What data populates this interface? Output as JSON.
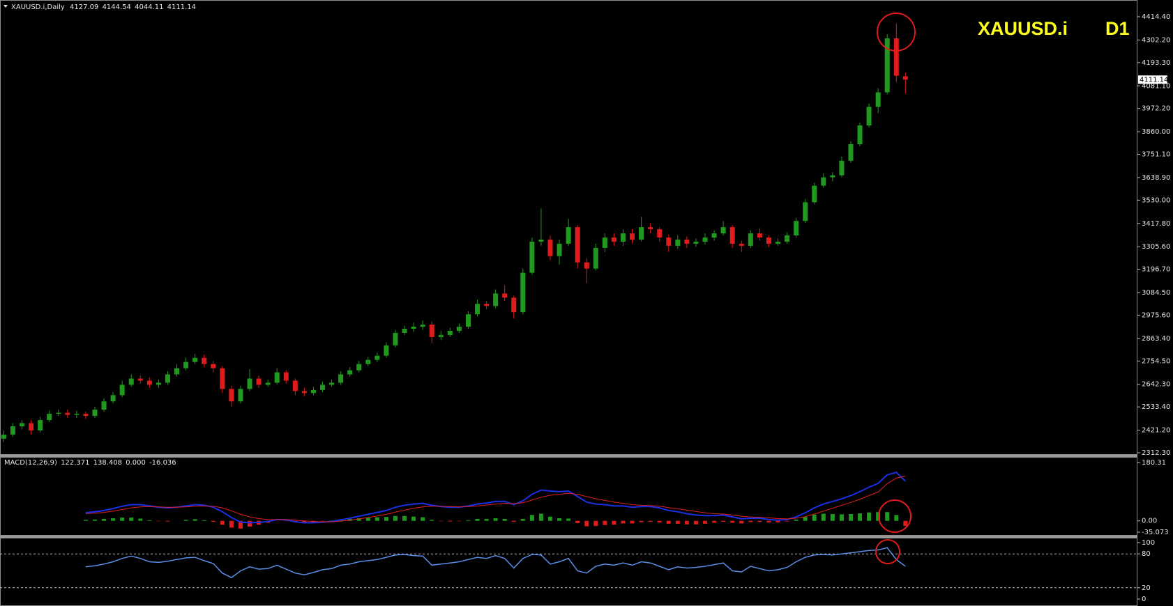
{
  "chart_data": [
    {
      "type": "candlestick",
      "title": "XAUUSD.i,Daily",
      "symbol": "XAUUSD.i",
      "timeframe": "D1",
      "up_color": "#1f9a1f",
      "down_color": "#e01b1b",
      "open": [
        2380,
        2400,
        2440,
        2455,
        2420,
        2470,
        2500,
        2505,
        2495,
        2500,
        2490,
        2520,
        2560,
        2590,
        2640,
        2670,
        2660,
        2640,
        2650,
        2690,
        2720,
        2750,
        2770,
        2740,
        2720,
        2620,
        2560,
        2620,
        2670,
        2640,
        2650,
        2700,
        2660,
        2610,
        2600,
        2615,
        2640,
        2650,
        2690,
        2710,
        2740,
        2760,
        2780,
        2830,
        2890,
        2910,
        2920,
        2930,
        2870,
        2880,
        2900,
        2920,
        2980,
        3030,
        3020,
        3080,
        3060,
        2990,
        3180,
        3330,
        3340,
        3260,
        3320,
        3400,
        3230,
        3200,
        3300,
        3350,
        3330,
        3370,
        3340,
        3400,
        3390,
        3350,
        3310,
        3340,
        3320,
        3330,
        3350,
        3370,
        3400,
        3320,
        3310,
        3370,
        3350,
        3320,
        3330,
        3360,
        3430,
        3520,
        3600,
        3640,
        3650,
        3720,
        3800,
        3890,
        3980,
        4050,
        4310,
        4127.09
      ],
      "high": [
        2420,
        2455,
        2470,
        2470,
        2485,
        2515,
        2520,
        2520,
        2515,
        2510,
        2535,
        2575,
        2605,
        2660,
        2690,
        2685,
        2675,
        2665,
        2705,
        2740,
        2770,
        2790,
        2785,
        2755,
        2730,
        2635,
        2635,
        2715,
        2685,
        2665,
        2720,
        2710,
        2670,
        2625,
        2630,
        2655,
        2665,
        2705,
        2725,
        2755,
        2775,
        2795,
        2845,
        2905,
        2925,
        2940,
        2950,
        2945,
        2900,
        2915,
        2935,
        2995,
        3050,
        3045,
        3100,
        3120,
        3070,
        3200,
        3350,
        3490,
        3360,
        3340,
        3440,
        3410,
        3250,
        3320,
        3370,
        3370,
        3390,
        3390,
        3450,
        3420,
        3400,
        3365,
        3360,
        3355,
        3345,
        3370,
        3385,
        3430,
        3410,
        3335,
        3385,
        3395,
        3360,
        3345,
        3375,
        3445,
        3535,
        3615,
        3660,
        3665,
        3740,
        3815,
        3905,
        3995,
        4070,
        4330,
        4381,
        4144.54
      ],
      "low": [
        2365,
        2390,
        2425,
        2400,
        2410,
        2460,
        2490,
        2480,
        2480,
        2475,
        2480,
        2510,
        2550,
        2580,
        2630,
        2645,
        2625,
        2625,
        2640,
        2680,
        2710,
        2740,
        2725,
        2700,
        2600,
        2535,
        2550,
        2610,
        2625,
        2630,
        2640,
        2645,
        2590,
        2585,
        2590,
        2605,
        2630,
        2640,
        2680,
        2700,
        2730,
        2750,
        2770,
        2820,
        2880,
        2895,
        2905,
        2840,
        2855,
        2870,
        2890,
        2910,
        2970,
        3005,
        3010,
        3045,
        2960,
        2980,
        3170,
        3310,
        3240,
        3220,
        3310,
        3200,
        3130,
        3190,
        3280,
        3310,
        3310,
        3320,
        3330,
        3370,
        3330,
        3280,
        3295,
        3300,
        3305,
        3315,
        3335,
        3360,
        3300,
        3280,
        3300,
        3335,
        3305,
        3310,
        3320,
        3350,
        3420,
        3510,
        3590,
        3620,
        3640,
        3710,
        3790,
        3880,
        3950,
        4040,
        4100,
        4044.11
      ],
      "close": [
        2400,
        2440,
        2455,
        2420,
        2470,
        2500,
        2505,
        2495,
        2500,
        2490,
        2520,
        2560,
        2590,
        2640,
        2670,
        2660,
        2640,
        2650,
        2690,
        2720,
        2750,
        2770,
        2740,
        2720,
        2620,
        2560,
        2620,
        2670,
        2640,
        2650,
        2700,
        2660,
        2610,
        2600,
        2615,
        2640,
        2650,
        2690,
        2710,
        2740,
        2760,
        2780,
        2830,
        2890,
        2910,
        2920,
        2930,
        2870,
        2880,
        2900,
        2920,
        2980,
        3030,
        3020,
        3080,
        3060,
        2990,
        3180,
        3330,
        3340,
        3260,
        3320,
        3400,
        3230,
        3200,
        3300,
        3350,
        3330,
        3370,
        3340,
        3400,
        3390,
        3350,
        3310,
        3340,
        3320,
        3330,
        3350,
        3370,
        3400,
        3320,
        3310,
        3370,
        3350,
        3320,
        3330,
        3360,
        3430,
        3520,
        3600,
        3640,
        3650,
        3720,
        3800,
        3890,
        3980,
        4050,
        4310,
        4130,
        4111.14
      ],
      "ylim": [
        2305.6,
        4488.3
      ],
      "yticks": [
        {
          "value": 2312.3,
          "label": "2312.30"
        },
        {
          "value": 2421.2,
          "label": "2421.20"
        },
        {
          "value": 2533.4,
          "label": "2533.40"
        },
        {
          "value": 2642.3,
          "label": "2642.30"
        },
        {
          "value": 2754.5,
          "label": "2754.50"
        },
        {
          "value": 2863.4,
          "label": "2863.40"
        },
        {
          "value": 2975.6,
          "label": "2975.60"
        },
        {
          "value": 3084.5,
          "label": "3084.50"
        },
        {
          "value": 3196.7,
          "label": "3196.70"
        },
        {
          "value": 3305.6,
          "label": "3305.60"
        },
        {
          "value": 3417.8,
          "label": "3417.80"
        },
        {
          "value": 3530,
          "label": "3530.00"
        },
        {
          "value": 3638.9,
          "label": "3638.90"
        },
        {
          "value": 3751.1,
          "label": "3751.10"
        },
        {
          "value": 3860,
          "label": "3860.00"
        },
        {
          "value": 3972.2,
          "label": "3972.20"
        },
        {
          "value": 4081.1,
          "label": "4081.10"
        },
        {
          "value": 4193.3,
          "label": "4193.30"
        },
        {
          "value": 4302.2,
          "label": "4302.20"
        },
        {
          "value": 4414.4,
          "label": "4414.40"
        }
      ],
      "grid": false
    },
    {
      "type": "macd",
      "title": "MACD(12,26,9)",
      "third_value": {
        "value": 0,
        "label": "0.000"
      },
      "series": [
        {
          "color": "#1a2fe6",
          "values": [
            null,
            null,
            null,
            null,
            null,
            null,
            null,
            null,
            null,
            25,
            28,
            32,
            38,
            45,
            50,
            50,
            46,
            42,
            40,
            42,
            46,
            50,
            48,
            42,
            28,
            10,
            -4,
            -6,
            -5,
            -2,
            4,
            3,
            -3,
            -6,
            -6,
            -4,
            -2,
            3,
            8,
            14,
            20,
            26,
            32,
            42,
            48,
            52,
            54,
            48,
            44,
            42,
            42,
            46,
            52,
            55,
            60,
            60,
            50,
            62,
            82,
            95,
            92,
            90,
            92,
            75,
            58,
            52,
            50,
            46,
            46,
            42,
            44,
            44,
            40,
            32,
            28,
            22,
            18,
            16,
            16,
            18,
            12,
            6,
            8,
            8,
            4,
            2,
            4,
            12,
            25,
            40,
            52,
            60,
            68,
            78,
            90,
            104,
            116,
            142,
            150,
            122.371
          ]
        },
        {
          "color": "#e02020",
          "values": [
            null,
            null,
            null,
            null,
            null,
            null,
            null,
            null,
            null,
            22,
            24,
            26,
            30,
            35,
            40,
            43,
            44,
            43,
            42,
            42,
            43,
            45,
            46,
            45,
            40,
            31,
            20,
            12,
            7,
            4,
            4,
            4,
            2,
            0,
            -2,
            -3,
            -3,
            -1,
            2,
            6,
            10,
            15,
            20,
            27,
            33,
            39,
            43,
            45,
            45,
            44,
            43,
            44,
            46,
            49,
            52,
            54,
            53,
            56,
            64,
            73,
            79,
            82,
            85,
            82,
            75,
            68,
            63,
            58,
            54,
            50,
            48,
            47,
            45,
            41,
            37,
            33,
            29,
            25,
            22,
            21,
            18,
            14,
            12,
            11,
            9,
            7,
            6,
            8,
            13,
            21,
            30,
            39,
            48,
            57,
            67,
            78,
            89,
            115,
            132,
            138.408
          ]
        }
      ],
      "histogram": {
        "up_color": "#1f9a1f",
        "down_color": "#e01b1b",
        "values": [
          null,
          null,
          null,
          null,
          null,
          null,
          null,
          null,
          null,
          3,
          4,
          6,
          8,
          10,
          10,
          7,
          2,
          -1,
          -2,
          0,
          3,
          5,
          2,
          -3,
          -12,
          -21,
          -24,
          -18,
          -12,
          -6,
          0,
          -1,
          -5,
          -6,
          -4,
          -1,
          1,
          4,
          6,
          8,
          10,
          11,
          12,
          15,
          15,
          13,
          11,
          3,
          -1,
          -2,
          -1,
          2,
          6,
          6,
          8,
          6,
          -3,
          6,
          18,
          22,
          13,
          8,
          7,
          -7,
          -17,
          -16,
          -13,
          -12,
          -8,
          -8,
          -4,
          -3,
          -5,
          -9,
          -9,
          -11,
          -11,
          -9,
          -6,
          -3,
          -6,
          -8,
          -4,
          -3,
          -5,
          -5,
          -2,
          4,
          12,
          19,
          22,
          21,
          20,
          21,
          23,
          26,
          27,
          27,
          18,
          -16.036
        ]
      },
      "ylim": [
        -35.073,
        180.31
      ],
      "yticks": [
        -35.073,
        {
          "value": 0,
          "label": "0.00"
        },
        180.31
      ]
    },
    {
      "type": "line",
      "color": "#5b8ee6",
      "dashed_levels": true,
      "values": [
        null,
        null,
        null,
        null,
        null,
        null,
        null,
        null,
        null,
        57,
        59,
        62,
        66,
        72,
        76,
        72,
        66,
        65,
        67,
        70,
        73,
        74,
        68,
        63,
        46,
        38,
        50,
        57,
        53,
        54,
        60,
        53,
        46,
        43,
        47,
        52,
        54,
        60,
        62,
        66,
        68,
        70,
        74,
        78,
        79,
        77,
        76,
        60,
        62,
        64,
        66,
        70,
        74,
        72,
        77,
        72,
        55,
        72,
        79,
        78,
        62,
        66,
        72,
        50,
        46,
        58,
        62,
        60,
        64,
        60,
        66,
        64,
        58,
        52,
        57,
        55,
        56,
        58,
        61,
        64,
        50,
        48,
        58,
        54,
        50,
        52,
        56,
        66,
        74,
        78,
        79,
        78,
        80,
        82,
        84,
        86,
        87,
        91,
        70,
        58
      ],
      "ylim": [
        0,
        100
      ],
      "yticks": [
        0,
        20,
        80,
        100
      ]
    }
  ]
}
